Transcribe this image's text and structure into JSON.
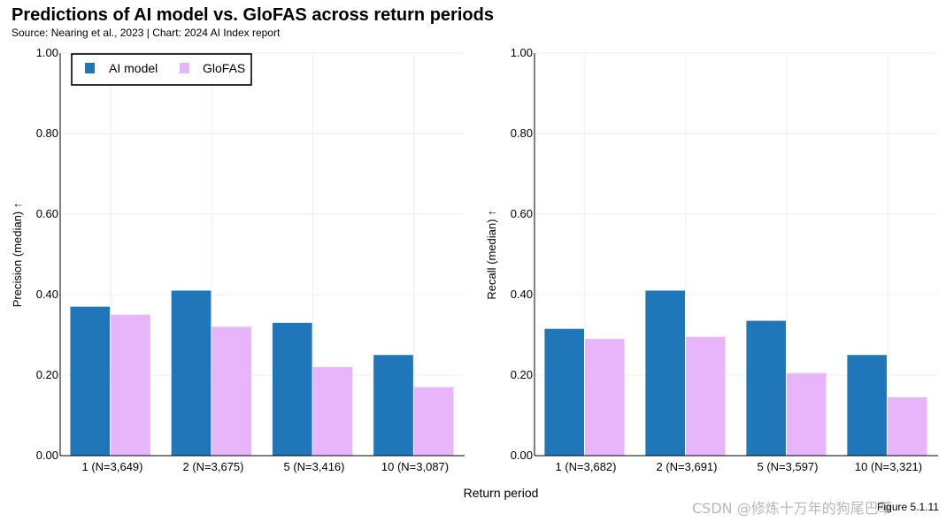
{
  "header": {
    "title": "Predictions of AI model vs. GloFAS across return periods",
    "subtitle": "Source: Nearing et al., 2023 | Chart: 2024 AI Index report"
  },
  "footer": {
    "figure_label": "Figure 5.1.11",
    "watermark": "CSDN @修炼十万年的狗尾巴草"
  },
  "colors": {
    "ai_model": "#1f77b9",
    "glofas": "#e8b4fa",
    "grid": "#eeeeee",
    "axis": "#000000"
  },
  "chart_data": [
    {
      "type": "bar",
      "categories": [
        "1 (N=3,649)",
        "2 (N=3,675)",
        "5 (N=3,416)",
        "10 (N=3,087)"
      ],
      "series": [
        {
          "name": "AI model",
          "values": [
            0.37,
            0.41,
            0.33,
            0.25
          ]
        },
        {
          "name": "GloFAS",
          "values": [
            0.35,
            0.32,
            0.22,
            0.17
          ]
        }
      ],
      "ylabel": "Precision (median) ↑",
      "xlabel": "Return period",
      "ylim": [
        0,
        1
      ],
      "yticks": [
        "0.00",
        "0.20",
        "0.40",
        "0.60",
        "0.80",
        "1.00"
      ],
      "grid": true,
      "legend": "top-left"
    },
    {
      "type": "bar",
      "categories": [
        "1 (N=3,682)",
        "2 (N=3,691)",
        "5 (N=3,597)",
        "10 (N=3,321)"
      ],
      "series": [
        {
          "name": "AI model",
          "values": [
            0.315,
            0.41,
            0.335,
            0.25
          ]
        },
        {
          "name": "GloFAS",
          "values": [
            0.29,
            0.295,
            0.205,
            0.145
          ]
        }
      ],
      "ylabel": "Recall (median) ↑",
      "xlabel": "Return period",
      "ylim": [
        0,
        1
      ],
      "yticks": [
        "0.00",
        "0.20",
        "0.40",
        "0.60",
        "0.80",
        "1.00"
      ],
      "grid": true
    }
  ]
}
